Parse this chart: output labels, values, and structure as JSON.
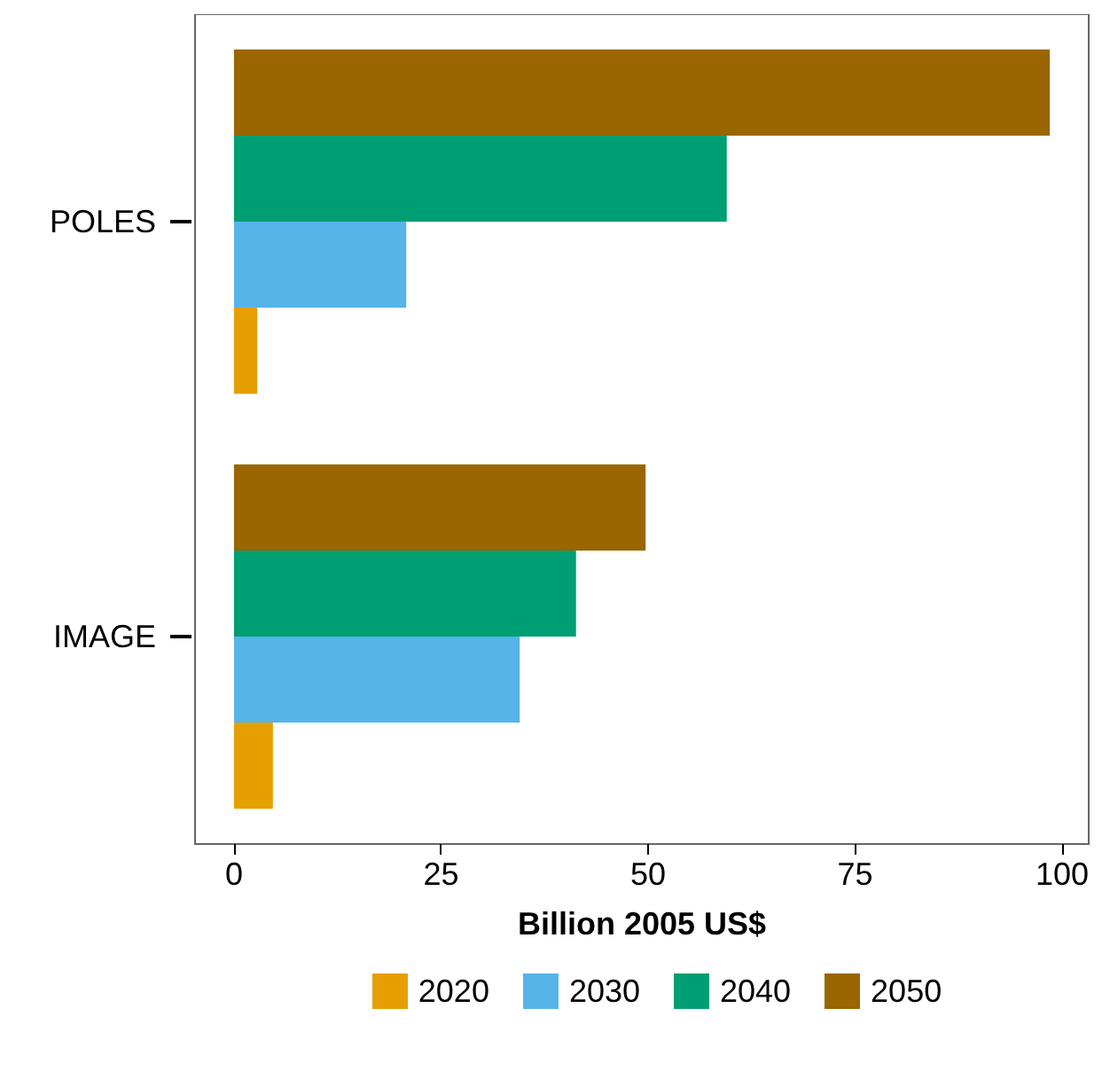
{
  "chart_data": {
    "type": "bar",
    "orientation": "horizontal",
    "categories": [
      "POLES",
      "IMAGE"
    ],
    "series": [
      {
        "name": "2020",
        "color": "#e69f00",
        "values": [
          2.8,
          4.7
        ]
      },
      {
        "name": "2030",
        "color": "#56b4e9",
        "values": [
          20.8,
          34.5
        ]
      },
      {
        "name": "2040",
        "color": "#009e73",
        "values": [
          59.5,
          41.3
        ]
      },
      {
        "name": "2050",
        "color": "#996600",
        "values": [
          98.5,
          49.7
        ]
      }
    ],
    "xlabel": "Billion 2005 US$",
    "xlim": [
      -4.7,
      103.2
    ],
    "xticks": [
      0,
      25,
      50,
      75,
      100
    ],
    "grid": false,
    "legend": "bottom"
  }
}
